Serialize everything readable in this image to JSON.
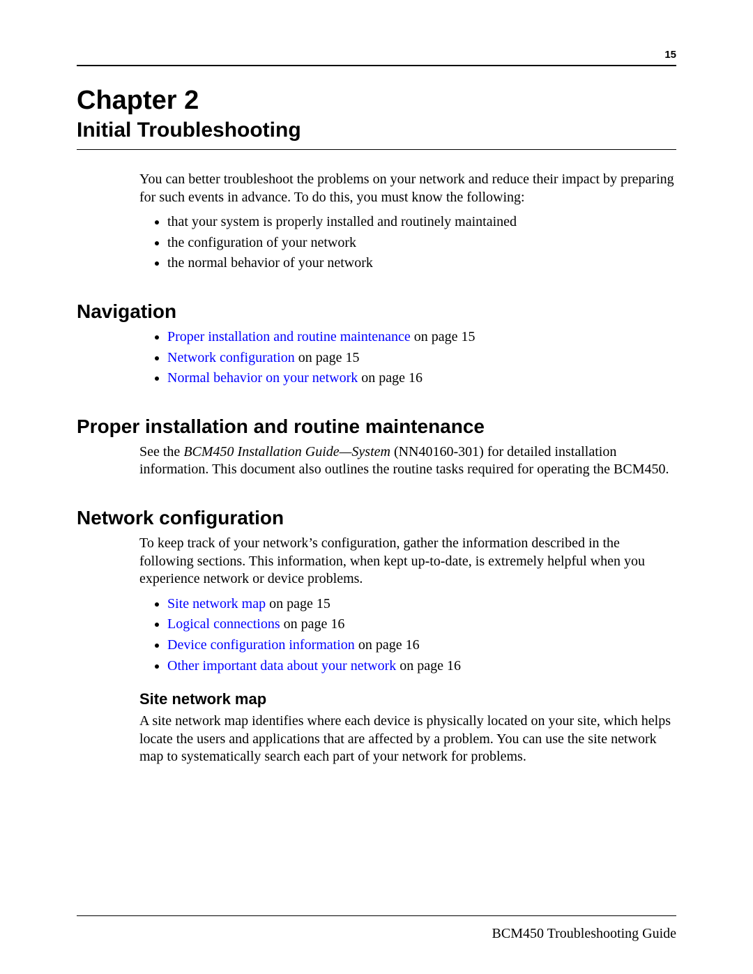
{
  "page_number": "15",
  "chapter_label": "Chapter 2",
  "chapter_title": "Initial Troubleshooting",
  "intro_para": "You can better troubleshoot the problems on your network and reduce their impact by preparing for such events in advance. To do this, you must know the following:",
  "intro_bullets": [
    "that your system is properly installed and routinely maintained",
    "the configuration of your network",
    "the normal behavior of your network"
  ],
  "nav_heading": "Navigation",
  "nav_items": [
    {
      "link": "Proper installation and routine maintenance",
      "suffix": " on page 15"
    },
    {
      "link": "Network configuration",
      "suffix": " on page 15"
    },
    {
      "link": "Normal behavior on your network",
      "suffix": " on page 16"
    }
  ],
  "sec_proper_heading": "Proper installation and routine maintenance",
  "sec_proper_para_pre": "See the ",
  "sec_proper_para_italic": "BCM450 Installation Guide—System",
  "sec_proper_para_post": " (NN40160-301) for detailed installation information. This document also outlines the routine tasks required for operating the BCM450.",
  "sec_netconf_heading": "Network configuration",
  "sec_netconf_para": "To keep track of your network’s configuration, gather the information described in the following sections. This information, when kept up-to-date, is extremely helpful when you experience network or device problems.",
  "netconf_items": [
    {
      "link": "Site network map",
      "suffix": " on page 15"
    },
    {
      "link": "Logical connections",
      "suffix": " on page 16"
    },
    {
      "link": "Device configuration information",
      "suffix": " on page 16"
    },
    {
      "link": "Other important data about your network",
      "suffix": " on page 16"
    }
  ],
  "sec_sitemap_heading": "Site network map",
  "sec_sitemap_para": "A site network map identifies where each device is physically located on your site, which helps locate the users and applications that are affected by a problem. You can use the site network map to systematically search each part of your network for problems.",
  "footer_text": "BCM450 Troubleshooting Guide",
  "colors": {
    "link": "#0000ff",
    "text": "#000000",
    "background": "#ffffff"
  }
}
